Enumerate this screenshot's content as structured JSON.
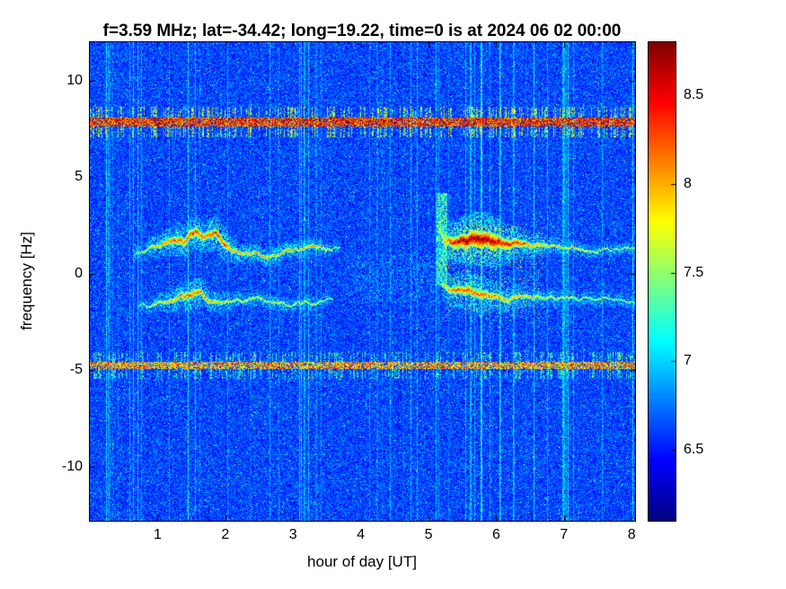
{
  "chart_data": {
    "type": "heatmap",
    "subtype": "doppler-spectrogram",
    "title": "f=3.59 MHz;  lat=-34.42; long=19.22, time=0 is at 2024 06 02 00:00",
    "xlabel": "hour of day [UT]",
    "ylabel": "frequency [Hz]",
    "xlim": [
      0,
      8.05
    ],
    "ylim": [
      -12.8,
      12
    ],
    "xticks": [
      1,
      2,
      3,
      4,
      5,
      6,
      7,
      8
    ],
    "yticks": [
      -10,
      -5,
      0,
      5,
      10
    ],
    "grid": false,
    "colormap": "jet",
    "clim": [
      6.1,
      8.8
    ],
    "colorbar": {
      "ticks": [
        6.5,
        7,
        7.5,
        8,
        8.5
      ],
      "position": "right"
    },
    "background": {
      "base_level": 6.38,
      "noise_amplitude": 0.47,
      "speckle_probability": 0.04,
      "speckle_boost": 0.9
    },
    "vertical_stripes": {
      "probability": 0.1,
      "bright_probability": 0.02,
      "boost_range": [
        0.1,
        0.6
      ],
      "dark_probability": 0.03,
      "dark_dip": 0.08
    },
    "interference_bands": [
      {
        "name": "upper-interference-band",
        "center_hz": 7.85,
        "halfwidth_hz": 0.22,
        "level": 8.35,
        "density": 0.85,
        "tick_halfwidth_hz": 0.8,
        "tick_probability": 0.35
      },
      {
        "name": "lower-interference-band",
        "center_hz": -4.75,
        "halfwidth_hz": 0.2,
        "level": 7.95,
        "density": 0.75,
        "tick_halfwidth_hz": 0.7,
        "tick_probability": 0.3
      }
    ],
    "doppler_traces": [
      {
        "name": "upper-trace-morning",
        "points": [
          [
            0.65,
            1.05,
            7.5,
            0.12
          ],
          [
            0.85,
            1.25,
            7.9,
            0.16
          ],
          [
            1.05,
            1.45,
            8.1,
            0.2
          ],
          [
            1.25,
            1.75,
            8.3,
            0.26
          ],
          [
            1.4,
            1.55,
            8.3,
            0.3
          ],
          [
            1.55,
            1.95,
            8.4,
            0.3
          ],
          [
            1.7,
            1.65,
            8.2,
            0.26
          ],
          [
            1.85,
            2.05,
            8.4,
            0.3
          ],
          [
            2.0,
            1.75,
            8.3,
            0.28
          ],
          [
            2.1,
            1.45,
            8.1,
            0.2
          ],
          [
            2.3,
            1.25,
            8.0,
            0.16
          ],
          [
            2.5,
            1.2,
            8.1,
            0.15
          ],
          [
            2.7,
            1.05,
            8.0,
            0.15
          ],
          [
            2.9,
            1.25,
            8.1,
            0.15
          ],
          [
            3.1,
            1.0,
            8.0,
            0.14
          ],
          [
            3.3,
            1.2,
            8.2,
            0.14
          ],
          [
            3.5,
            1.05,
            7.9,
            0.12
          ],
          [
            3.7,
            1.1,
            7.7,
            0.1
          ]
        ]
      },
      {
        "name": "lower-trace-morning",
        "points": [
          [
            0.7,
            -1.5,
            7.5,
            0.12
          ],
          [
            0.95,
            -1.45,
            7.8,
            0.15
          ],
          [
            1.15,
            -1.25,
            8.0,
            0.18
          ],
          [
            1.35,
            -0.95,
            8.2,
            0.24
          ],
          [
            1.5,
            -1.05,
            8.3,
            0.26
          ],
          [
            1.65,
            -0.9,
            8.2,
            0.24
          ],
          [
            1.8,
            -1.3,
            8.0,
            0.2
          ],
          [
            2.0,
            -1.5,
            7.9,
            0.16
          ],
          [
            2.2,
            -1.6,
            7.8,
            0.14
          ],
          [
            2.4,
            -1.45,
            7.9,
            0.14
          ],
          [
            2.6,
            -1.6,
            7.8,
            0.13
          ],
          [
            2.8,
            -1.5,
            7.9,
            0.13
          ],
          [
            3.0,
            -1.65,
            7.8,
            0.12
          ],
          [
            3.2,
            -1.5,
            7.9,
            0.12
          ],
          [
            3.45,
            -1.6,
            7.7,
            0.11
          ],
          [
            3.6,
            -1.55,
            7.5,
            0.1
          ]
        ]
      },
      {
        "name": "upper-trace-evening",
        "points": [
          [
            5.15,
            2.6,
            7.6,
            0.35
          ],
          [
            5.25,
            1.9,
            8.2,
            0.3
          ],
          [
            5.4,
            1.75,
            8.6,
            0.35
          ],
          [
            5.55,
            1.65,
            8.8,
            0.4
          ],
          [
            5.75,
            1.55,
            8.85,
            0.45
          ],
          [
            5.95,
            1.5,
            8.75,
            0.42
          ],
          [
            6.15,
            1.4,
            8.5,
            0.32
          ],
          [
            6.35,
            1.3,
            8.3,
            0.26
          ],
          [
            6.55,
            1.25,
            8.1,
            0.2
          ],
          [
            6.8,
            1.2,
            7.95,
            0.16
          ],
          [
            7.1,
            1.15,
            7.85,
            0.13
          ],
          [
            7.4,
            1.1,
            7.85,
            0.12
          ],
          [
            7.7,
            1.1,
            7.75,
            0.11
          ],
          [
            8.05,
            1.05,
            7.75,
            0.1
          ]
        ]
      },
      {
        "name": "lower-trace-evening",
        "points": [
          [
            5.2,
            -0.85,
            7.9,
            0.22
          ],
          [
            5.4,
            -1.0,
            8.2,
            0.3
          ],
          [
            5.6,
            -1.1,
            8.3,
            0.32
          ],
          [
            5.8,
            -1.2,
            8.25,
            0.3
          ],
          [
            6.0,
            -1.3,
            8.1,
            0.26
          ],
          [
            6.2,
            -1.35,
            8.0,
            0.22
          ],
          [
            6.5,
            -1.4,
            7.9,
            0.18
          ],
          [
            6.8,
            -1.45,
            7.85,
            0.15
          ],
          [
            7.2,
            -1.5,
            7.75,
            0.13
          ],
          [
            7.6,
            -1.5,
            7.7,
            0.12
          ],
          [
            8.05,
            -1.55,
            7.65,
            0.1
          ]
        ]
      }
    ],
    "plume": {
      "hour": 5.2,
      "halfwidth_hours": 0.08,
      "freq_range": [
        -0.6,
        4.2
      ],
      "level": 7.25
    },
    "evening_scatter": {
      "hour_range": [
        5.25,
        6.7
      ],
      "freq_range": [
        -2.3,
        2.6
      ],
      "probability": 0.05,
      "level_range": [
        7.3,
        8.2
      ]
    },
    "midday_haze": {
      "hour_range": [
        3.8,
        5.15
      ],
      "freq_range": [
        -1.5,
        1.0
      ],
      "probability": 0.12,
      "level": 6.85
    },
    "seed": 42
  }
}
